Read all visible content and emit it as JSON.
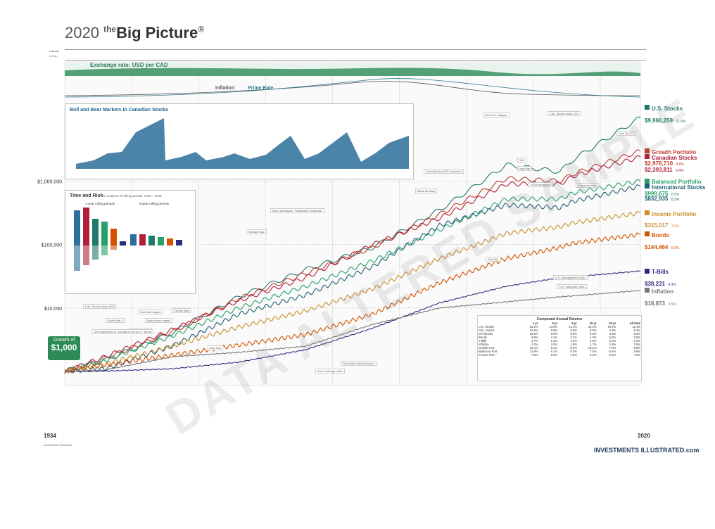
{
  "header": {
    "year": "2020",
    "the": "the",
    "title": "Big Picture",
    "mark": "®"
  },
  "countries": {
    "canada": "Canada",
    "us": "U.S.A."
  },
  "exchange_label": "Exchange rate: USD per CAD",
  "inflation_label": "Inflation",
  "prime_label": "Prime Rate",
  "bull_title": "Bull and Bear Markets in Canadian Stocks",
  "time_risk_title": "Time and Risk",
  "time_risk_sub": "An analysis of rolling periods, 1935 – 2019",
  "rolling1": "1-year rolling periods",
  "rolling5": "5-year rolling periods",
  "growth_of": "Growth of",
  "growth_amount": "$1,000",
  "year_start": "1934",
  "year_end": "2020",
  "y_ticks": [
    "$1,000,000",
    "$100,000",
    "$10,000"
  ],
  "legend": [
    {
      "name": "U.S. Stocks",
      "value": "$9,966,259",
      "rate": "11.4%",
      "color": "#1f7a6b"
    },
    {
      "name": "Growth Portfolio",
      "value": "$2,976,710",
      "rate": "9.8%",
      "color": "#c0392b"
    },
    {
      "name": "Canadian Stocks",
      "value": "$2,393,811",
      "rate": "9.4%",
      "color": "#b0203a"
    },
    {
      "name": "Balanced Portfolio",
      "value": "$999,675",
      "rate": "8.5%",
      "color": "#27a06a"
    },
    {
      "name": "International Stocks",
      "value": "$832,935",
      "rate": "8.2%",
      "color": "#1f5f73"
    },
    {
      "name": "Income Portfolio",
      "value": "$315,017",
      "rate": "7.0%",
      "color": "#c8902a"
    },
    {
      "name": "Bonds",
      "value": "$144,464",
      "rate": "5.9%",
      "color": "#d35400"
    },
    {
      "name": "T-Bills",
      "value": "$38,231",
      "rate": "4.3%",
      "color": "#2c2c80"
    },
    {
      "name": "Inflation",
      "value": "$18,873",
      "rate": "3.5%",
      "color": "#777777"
    }
  ],
  "annotations": [
    "Dot Com collapse",
    "9/11",
    "Iraq War",
    "Black Monday",
    "Eurozone crisis",
    "Gulf War",
    "Vietnam War",
    "Korean War",
    "World War II",
    "Cold War begins",
    "Baby boom begins",
    "Arab embargo crisis",
    "First index fund launched",
    "U.S. downgraded to AA+",
    "U.S. subprime crisis",
    "Canadian first ETF launched",
    "Alan Greenspan: \"Irrationally Exuberant\"",
    "Cdn. Stocks down 40%",
    "Cdn. Stocks down 43%",
    "TFSA introduced",
    "Dow 26,472",
    "Dow 500",
    "Bretton Woods",
    "Life expectancy in Canada M: 63 yrs, F: 68 yrs"
  ],
  "table": {
    "title": "Compound Annual Returns",
    "risk": "Risk",
    "headers": [
      "",
      "1-yr",
      "3-yr",
      "5-yr",
      "10-yr",
      "20-yr",
      "All-time"
    ],
    "rows": [
      [
        "U.S. Stocks",
        "25.2%",
        "14.0%",
        "14.2%",
        "16.0%",
        "10.0%",
        "11.4%"
      ],
      [
        "Cdn. Stocks",
        "22.9%",
        "6.9%",
        "6.3%",
        "6.9%",
        "6.3%",
        "9.4%"
      ],
      [
        "Int'l Stocks",
        "16.8%",
        "8.9%",
        "6.6%",
        "6.3%",
        "3.3%",
        "8.2%"
      ],
      [
        "Bonds",
        "6.9%",
        "4.1%",
        "3.1%",
        "4.3%",
        "5.2%",
        "5.9%"
      ],
      [
        "T-Bills",
        "1.7%",
        "1.3%",
        "1.0%",
        "1.0%",
        "2.0%",
        "4.3%"
      ],
      [
        "Inflation",
        "2.2%",
        "2.0%",
        "1.6%",
        "1.7%",
        "1.8%",
        "3.5%"
      ],
      [
        "Growth Port.",
        "18.4%",
        "9.2%",
        "8.0%",
        "10.2%",
        "7.0%",
        "9.8%"
      ],
      [
        "Balanced Port.",
        "12.8%",
        "6.1%",
        "6.0%",
        "7.0%",
        "6.4%",
        "8.5%"
      ],
      [
        "Income Port.",
        "7.9%",
        "5.0%",
        "4.5%",
        "5.2%",
        "5.1%",
        "7.0%"
      ]
    ]
  },
  "footer_text": "Investments Illustrated",
  "logo": "INVESTMENTS ILLUSTRATED.com",
  "watermark": "DATA ALTERED SAMPLE",
  "chart_data": {
    "type": "line",
    "title": "2020 the Big Picture",
    "y_scale": "log",
    "ylim": [
      600,
      20000000
    ],
    "xlim": [
      1934,
      2020
    ],
    "series": [
      {
        "name": "U.S. Stocks",
        "color": "#1f7a6b",
        "x": [
          1934,
          1940,
          1950,
          1960,
          1970,
          1980,
          1990,
          2000,
          2008,
          2010,
          2020
        ],
        "values": [
          1000,
          1500,
          4000,
          15000,
          40000,
          90000,
          350000,
          1800000,
          1400000,
          2200000,
          9966259
        ]
      },
      {
        "name": "Growth Portfolio",
        "color": "#c0392b",
        "x": [
          1934,
          1940,
          1950,
          1960,
          1970,
          1980,
          1990,
          2000,
          2008,
          2010,
          2020
        ],
        "values": [
          1000,
          1600,
          4200,
          14000,
          35000,
          90000,
          300000,
          1100000,
          1000000,
          1300000,
          2976710
        ]
      },
      {
        "name": "Canadian Stocks",
        "color": "#b0203a",
        "x": [
          1934,
          1940,
          1950,
          1960,
          1970,
          1980,
          1990,
          2000,
          2008,
          2010,
          2020
        ],
        "values": [
          1000,
          1700,
          4500,
          13000,
          30000,
          100000,
          260000,
          900000,
          900000,
          1200000,
          2393811
        ]
      },
      {
        "name": "Balanced Portfolio",
        "color": "#27a06a",
        "x": [
          1934,
          1940,
          1950,
          1960,
          1970,
          1980,
          1990,
          2000,
          2008,
          2010,
          2020
        ],
        "values": [
          1000,
          1500,
          3600,
          10000,
          22000,
          55000,
          170000,
          520000,
          520000,
          650000,
          999675
        ]
      },
      {
        "name": "International Stocks",
        "color": "#1f5f73",
        "x": [
          1934,
          1940,
          1950,
          1960,
          1970,
          1980,
          1990,
          2000,
          2008,
          2010,
          2020
        ],
        "values": [
          1000,
          1100,
          2500,
          8000,
          16000,
          45000,
          200000,
          420000,
          380000,
          480000,
          832935
        ]
      },
      {
        "name": "Income Portfolio",
        "color": "#c8902a",
        "x": [
          1934,
          1940,
          1950,
          1960,
          1970,
          1980,
          1990,
          2000,
          2008,
          2010,
          2020
        ],
        "values": [
          1000,
          1300,
          2500,
          5000,
          9000,
          20000,
          60000,
          150000,
          190000,
          220000,
          315017
        ]
      },
      {
        "name": "Bonds",
        "color": "#d35400",
        "x": [
          1934,
          1940,
          1950,
          1960,
          1970,
          1980,
          1990,
          2000,
          2008,
          2010,
          2020
        ],
        "values": [
          1000,
          1250,
          1800,
          2600,
          3800,
          8000,
          25000,
          60000,
          90000,
          105000,
          144464
        ]
      },
      {
        "name": "T-Bills",
        "color": "#2c2c80",
        "x": [
          1934,
          1940,
          1950,
          1960,
          1970,
          1980,
          1990,
          2000,
          2008,
          2010,
          2020
        ],
        "values": [
          1000,
          1010,
          1100,
          1400,
          2200,
          4800,
          12000,
          22000,
          30000,
          31000,
          38231
        ]
      },
      {
        "name": "Inflation",
        "color": "#777777",
        "x": [
          1934,
          1940,
          1950,
          1960,
          1970,
          1980,
          1990,
          2000,
          2008,
          2010,
          2020
        ],
        "values": [
          1000,
          1050,
          1700,
          2000,
          2500,
          5500,
          10000,
          12500,
          15000,
          15500,
          18873
        ]
      }
    ]
  }
}
